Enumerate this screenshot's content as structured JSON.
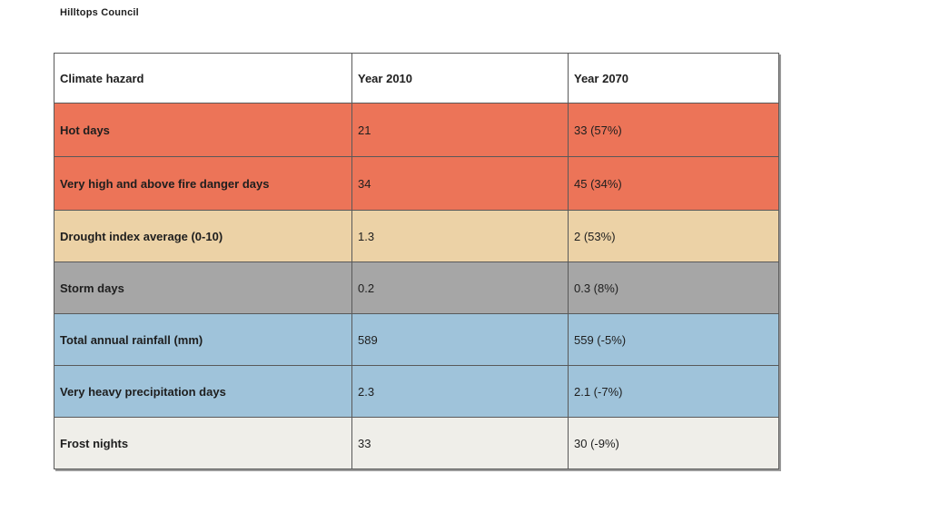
{
  "page": {
    "title": "Hilltops Council",
    "background": "#FFFFFF"
  },
  "colors": {
    "heat_row": "#EC7458",
    "drought_row": "#ECD2A6",
    "storm_row": "#A6A6A6",
    "rain_row": "#9FC3DA",
    "frost_row": "#EFEEE9",
    "header_bg": "#FFFFFF",
    "border": "#595959",
    "edge_shadow": "#9A9A9A",
    "text": "#1E1E1E"
  },
  "table": {
    "columns": [
      {
        "label": "Climate hazard"
      },
      {
        "label": "Year 2010"
      },
      {
        "label": "Year 2070"
      }
    ],
    "rows": [
      {
        "label": "Hot days",
        "year_2010": "21",
        "year_2070": "33 (57%)",
        "color": "#EC7458"
      },
      {
        "label": "Very high and above fire danger days",
        "year_2010": "34",
        "year_2070": "45 (34%)",
        "color": "#EC7458"
      },
      {
        "label": "Drought index average (0-10)",
        "year_2010": "1.3",
        "year_2070": "2 (53%)",
        "color": "#ECD2A6"
      },
      {
        "label": "Storm days",
        "year_2010": "0.2",
        "year_2070": "0.3 (8%)",
        "color": "#A6A6A6"
      },
      {
        "label": "Total annual rainfall (mm)",
        "year_2010": "589",
        "year_2070": "559 (-5%)",
        "color": "#9FC3DA"
      },
      {
        "label": "Very heavy precipitation days",
        "year_2010": "2.3",
        "year_2070": "2.1 (-7%)",
        "color": "#9FC3DA"
      },
      {
        "label": "Frost nights",
        "year_2010": "33",
        "year_2070": "30 (-9%)",
        "color": "#EFEEE9"
      }
    ]
  }
}
